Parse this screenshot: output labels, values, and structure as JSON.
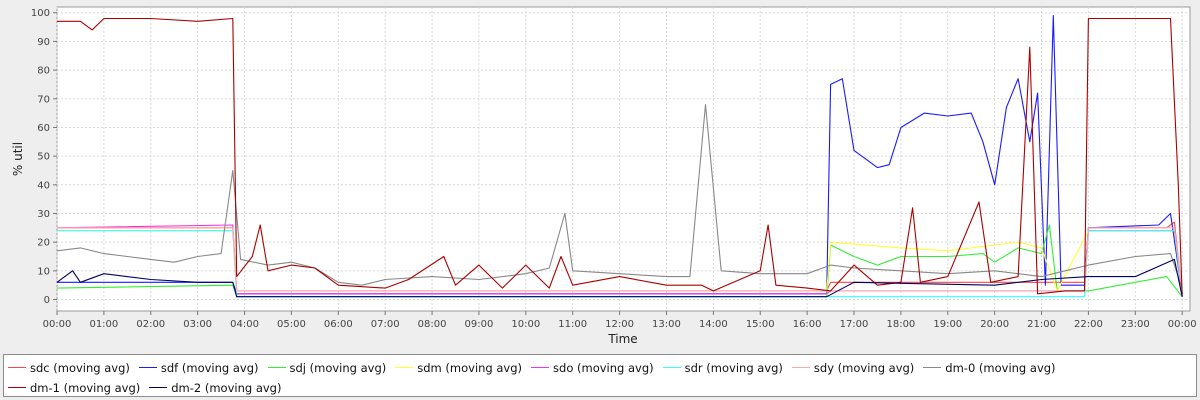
{
  "chart_data": {
    "type": "line",
    "title": "",
    "xlabel": "Time",
    "ylabel": "% util",
    "ylim": [
      -4,
      102
    ],
    "yticks": [
      0,
      10,
      20,
      30,
      40,
      50,
      60,
      70,
      80,
      90,
      100
    ],
    "xlim": [
      "00:00",
      "24:10"
    ],
    "xticks": [
      "00:00",
      "01:00",
      "02:00",
      "03:00",
      "04:00",
      "05:00",
      "06:00",
      "07:00",
      "08:00",
      "09:00",
      "10:00",
      "11:00",
      "12:00",
      "13:00",
      "14:00",
      "15:00",
      "16:00",
      "17:00",
      "18:00",
      "19:00",
      "20:00",
      "21:00",
      "22:00",
      "23:00",
      "00:00"
    ],
    "grid": true,
    "legend_position": "bottom",
    "series": [
      {
        "name": "sdc (moving avg)",
        "color": "#ff4444",
        "points": [
          [
            "00:00",
            25
          ],
          [
            "03:45",
            25
          ],
          [
            "03:50",
            3
          ],
          [
            "16:25",
            3
          ],
          [
            "16:30",
            6
          ],
          [
            "21:55",
            6
          ],
          [
            "22:00",
            25
          ],
          [
            "23:40",
            25
          ],
          [
            "23:50",
            27
          ],
          [
            "24:00",
            2
          ]
        ]
      },
      {
        "name": "sdf (moving avg)",
        "color": "#1a1aff",
        "points": [
          [
            "00:00",
            6
          ],
          [
            "03:45",
            6
          ],
          [
            "03:50",
            2
          ],
          [
            "16:25",
            2
          ],
          [
            "16:30",
            75
          ],
          [
            "16:45",
            77
          ],
          [
            "17:00",
            52
          ],
          [
            "17:30",
            46
          ],
          [
            "17:45",
            47
          ],
          [
            "18:00",
            60
          ],
          [
            "18:30",
            65
          ],
          [
            "19:00",
            64
          ],
          [
            "19:30",
            65
          ],
          [
            "19:45",
            55
          ],
          [
            "20:00",
            40
          ],
          [
            "20:15",
            67
          ],
          [
            "20:30",
            77
          ],
          [
            "20:45",
            55
          ],
          [
            "20:55",
            72
          ],
          [
            "21:05",
            5
          ],
          [
            "21:15",
            99
          ],
          [
            "21:25",
            5
          ],
          [
            "21:55",
            5
          ],
          [
            "22:00",
            25
          ],
          [
            "23:30",
            26
          ],
          [
            "23:45",
            30
          ],
          [
            "24:00",
            2
          ]
        ]
      },
      {
        "name": "sdj (moving avg)",
        "color": "#33ee33",
        "points": [
          [
            "00:00",
            4
          ],
          [
            "03:45",
            5
          ],
          [
            "03:50",
            1
          ],
          [
            "16:25",
            1
          ],
          [
            "16:30",
            19
          ],
          [
            "17:00",
            15
          ],
          [
            "17:30",
            12
          ],
          [
            "18:00",
            15
          ],
          [
            "19:00",
            15
          ],
          [
            "19:45",
            16
          ],
          [
            "20:00",
            13
          ],
          [
            "20:30",
            18
          ],
          [
            "21:00",
            16
          ],
          [
            "21:10",
            26
          ],
          [
            "21:20",
            3
          ],
          [
            "22:00",
            3
          ],
          [
            "23:40",
            8
          ],
          [
            "24:00",
            1
          ]
        ]
      },
      {
        "name": "sdm (moving avg)",
        "color": "#ffff33",
        "points": [
          [
            "00:00",
            24
          ],
          [
            "03:45",
            24
          ],
          [
            "03:50",
            3
          ],
          [
            "16:25",
            3
          ],
          [
            "16:30",
            20
          ],
          [
            "18:00",
            18
          ],
          [
            "19:00",
            17
          ],
          [
            "20:00",
            19
          ],
          [
            "20:30",
            20
          ],
          [
            "21:00",
            18
          ],
          [
            "21:20",
            3
          ],
          [
            "22:00",
            24
          ],
          [
            "23:50",
            24
          ],
          [
            "24:00",
            3
          ]
        ]
      },
      {
        "name": "sdo (moving avg)",
        "color": "#ee33ee",
        "points": [
          [
            "00:00",
            25
          ],
          [
            "03:45",
            26
          ],
          [
            "03:50",
            2
          ],
          [
            "16:25",
            2
          ],
          [
            "16:30",
            3
          ],
          [
            "21:55",
            3
          ],
          [
            "22:00",
            24
          ],
          [
            "23:50",
            24
          ],
          [
            "24:00",
            2
          ]
        ]
      },
      {
        "name": "sdr (moving avg)",
        "color": "#33ffff",
        "points": [
          [
            "00:00",
            24
          ],
          [
            "03:45",
            24
          ],
          [
            "03:50",
            1
          ],
          [
            "21:55",
            1
          ],
          [
            "22:00",
            24
          ],
          [
            "23:50",
            24
          ],
          [
            "24:00",
            1
          ]
        ]
      },
      {
        "name": "sdy (moving avg)",
        "color": "#ffaaaa",
        "points": [
          [
            "00:00",
            25
          ],
          [
            "03:45",
            25
          ],
          [
            "03:50",
            3
          ],
          [
            "21:55",
            3
          ],
          [
            "22:00",
            25
          ],
          [
            "23:50",
            25
          ],
          [
            "24:00",
            3
          ]
        ]
      },
      {
        "name": "dm-0 (moving avg)",
        "color": "#888888",
        "points": [
          [
            "00:00",
            17
          ],
          [
            "00:30",
            18
          ],
          [
            "01:00",
            16
          ],
          [
            "01:30",
            15
          ],
          [
            "02:00",
            14
          ],
          [
            "02:30",
            13
          ],
          [
            "03:00",
            15
          ],
          [
            "03:30",
            16
          ],
          [
            "03:45",
            45
          ],
          [
            "03:55",
            14
          ],
          [
            "04:30",
            12
          ],
          [
            "05:00",
            13
          ],
          [
            "05:30",
            11
          ],
          [
            "06:00",
            6
          ],
          [
            "06:30",
            5
          ],
          [
            "07:00",
            7
          ],
          [
            "08:00",
            8
          ],
          [
            "09:00",
            7
          ],
          [
            "10:00",
            9
          ],
          [
            "10:30",
            11
          ],
          [
            "10:50",
            30
          ],
          [
            "11:00",
            10
          ],
          [
            "12:00",
            9
          ],
          [
            "13:00",
            8
          ],
          [
            "13:30",
            8
          ],
          [
            "13:50",
            68
          ],
          [
            "14:10",
            10
          ],
          [
            "15:00",
            9
          ],
          [
            "16:00",
            9
          ],
          [
            "16:30",
            12
          ],
          [
            "17:00",
            11
          ],
          [
            "18:00",
            10
          ],
          [
            "19:00",
            9
          ],
          [
            "20:00",
            10
          ],
          [
            "20:30",
            9
          ],
          [
            "21:00",
            8
          ],
          [
            "21:30",
            10
          ],
          [
            "22:00",
            12
          ],
          [
            "23:00",
            15
          ],
          [
            "23:45",
            16
          ],
          [
            "24:00",
            4
          ]
        ]
      },
      {
        "name": "dm-1 (moving avg)",
        "color": "#aa0000",
        "points": [
          [
            "00:00",
            97
          ],
          [
            "00:30",
            97
          ],
          [
            "00:45",
            94
          ],
          [
            "01:00",
            98
          ],
          [
            "02:00",
            98
          ],
          [
            "03:00",
            97
          ],
          [
            "03:45",
            98
          ],
          [
            "03:50",
            8
          ],
          [
            "04:10",
            15
          ],
          [
            "04:20",
            26
          ],
          [
            "04:30",
            10
          ],
          [
            "05:00",
            12
          ],
          [
            "05:30",
            11
          ],
          [
            "06:00",
            5
          ],
          [
            "07:00",
            4
          ],
          [
            "07:30",
            7
          ],
          [
            "08:15",
            15
          ],
          [
            "08:30",
            5
          ],
          [
            "09:00",
            12
          ],
          [
            "09:30",
            4
          ],
          [
            "10:00",
            12
          ],
          [
            "10:30",
            4
          ],
          [
            "10:45",
            15
          ],
          [
            "11:00",
            5
          ],
          [
            "12:00",
            8
          ],
          [
            "13:00",
            5
          ],
          [
            "13:45",
            5
          ],
          [
            "14:00",
            3
          ],
          [
            "15:00",
            10
          ],
          [
            "15:10",
            26
          ],
          [
            "15:20",
            5
          ],
          [
            "16:00",
            4
          ],
          [
            "16:30",
            3
          ],
          [
            "17:00",
            12
          ],
          [
            "17:30",
            5
          ],
          [
            "18:00",
            6
          ],
          [
            "18:15",
            32
          ],
          [
            "18:25",
            6
          ],
          [
            "19:00",
            8
          ],
          [
            "19:40",
            34
          ],
          [
            "19:55",
            6
          ],
          [
            "20:30",
            8
          ],
          [
            "20:45",
            88
          ],
          [
            "20:55",
            2
          ],
          [
            "21:30",
            3
          ],
          [
            "21:55",
            3
          ],
          [
            "22:00",
            98
          ],
          [
            "23:00",
            98
          ],
          [
            "23:45",
            98
          ],
          [
            "23:55",
            40
          ],
          [
            "24:00",
            1
          ]
        ]
      },
      {
        "name": "dm-2 (moving avg)",
        "color": "#000066",
        "points": [
          [
            "00:00",
            6
          ],
          [
            "00:20",
            10
          ],
          [
            "00:30",
            6
          ],
          [
            "01:00",
            9
          ],
          [
            "02:00",
            7
          ],
          [
            "03:00",
            6
          ],
          [
            "03:45",
            6
          ],
          [
            "03:50",
            1
          ],
          [
            "16:25",
            1
          ],
          [
            "17:00",
            6
          ],
          [
            "20:00",
            5
          ],
          [
            "21:00",
            7
          ],
          [
            "22:00",
            8
          ],
          [
            "23:00",
            8
          ],
          [
            "23:50",
            14
          ],
          [
            "24:00",
            1
          ]
        ]
      }
    ]
  }
}
